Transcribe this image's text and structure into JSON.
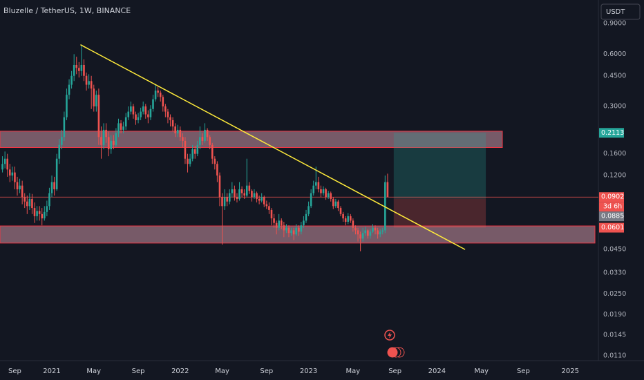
{
  "header": {
    "title": "Bluzelle / TetherUS, 1W, BINANCE",
    "currency": "USDT"
  },
  "chart_data": {
    "type": "candlestick",
    "log_scale": true,
    "up_color": "#26a69a",
    "down_color": "#ef5350",
    "open_first": 0.13,
    "close": [
      0.14,
      0.15,
      0.13,
      0.12,
      0.125,
      0.11,
      0.1,
      0.105,
      0.09,
      0.085,
      0.08,
      0.088,
      0.078,
      0.07,
      0.075,
      0.072,
      0.068,
      0.074,
      0.08,
      0.095,
      0.11,
      0.1,
      0.15,
      0.18,
      0.2,
      0.26,
      0.35,
      0.4,
      0.45,
      0.52,
      0.5,
      0.48,
      0.52,
      0.45,
      0.4,
      0.42,
      0.38,
      0.3,
      0.35,
      0.2,
      0.18,
      0.22,
      0.2,
      0.17,
      0.19,
      0.18,
      0.21,
      0.24,
      0.22,
      0.23,
      0.26,
      0.28,
      0.3,
      0.27,
      0.25,
      0.26,
      0.28,
      0.3,
      0.27,
      0.26,
      0.29,
      0.33,
      0.37,
      0.36,
      0.34,
      0.3,
      0.28,
      0.26,
      0.25,
      0.23,
      0.21,
      0.22,
      0.2,
      0.19,
      0.15,
      0.14,
      0.15,
      0.17,
      0.16,
      0.18,
      0.2,
      0.19,
      0.22,
      0.2,
      0.18,
      0.15,
      0.14,
      0.12,
      0.09,
      0.08,
      0.09,
      0.085,
      0.095,
      0.1,
      0.09,
      0.088,
      0.1,
      0.095,
      0.092,
      0.105,
      0.098,
      0.09,
      0.095,
      0.088,
      0.086,
      0.09,
      0.082,
      0.08,
      0.076,
      0.068,
      0.064,
      0.06,
      0.066,
      0.062,
      0.058,
      0.06,
      0.056,
      0.058,
      0.055,
      0.06,
      0.057,
      0.062,
      0.066,
      0.072,
      0.08,
      0.095,
      0.105,
      0.11,
      0.1,
      0.095,
      0.1,
      0.09,
      0.095,
      0.088,
      0.08,
      0.085,
      0.078,
      0.072,
      0.068,
      0.065,
      0.07,
      0.066,
      0.06,
      0.058,
      0.055,
      0.052,
      0.056,
      0.058,
      0.054,
      0.057,
      0.06,
      0.058,
      0.055,
      0.057,
      0.058,
      0.11,
      0.0902
    ],
    "high": [
      0.155,
      0.165,
      0.16,
      0.14,
      0.135,
      0.135,
      0.118,
      0.115,
      0.112,
      0.095,
      0.092,
      0.095,
      0.094,
      0.084,
      0.08,
      0.08,
      0.078,
      0.08,
      0.086,
      0.102,
      0.12,
      0.118,
      0.16,
      0.195,
      0.22,
      0.28,
      0.38,
      0.43,
      0.48,
      0.6,
      0.58,
      0.54,
      0.68,
      0.56,
      0.47,
      0.46,
      0.45,
      0.4,
      0.37,
      0.38,
      0.23,
      0.24,
      0.24,
      0.215,
      0.205,
      0.205,
      0.225,
      0.255,
      0.25,
      0.245,
      0.275,
      0.3,
      0.32,
      0.31,
      0.28,
      0.275,
      0.295,
      0.32,
      0.31,
      0.285,
      0.305,
      0.35,
      0.4,
      0.39,
      0.37,
      0.35,
      0.31,
      0.29,
      0.27,
      0.26,
      0.24,
      0.235,
      0.23,
      0.21,
      0.2,
      0.16,
      0.16,
      0.18,
      0.178,
      0.19,
      0.23,
      0.21,
      0.24,
      0.225,
      0.205,
      0.185,
      0.155,
      0.145,
      0.125,
      0.095,
      0.1,
      0.095,
      0.1,
      0.11,
      0.105,
      0.095,
      0.11,
      0.104,
      0.1,
      0.15,
      0.11,
      0.1,
      0.1,
      0.097,
      0.092,
      0.095,
      0.092,
      0.086,
      0.084,
      0.078,
      0.072,
      0.066,
      0.072,
      0.068,
      0.065,
      0.063,
      0.062,
      0.06,
      0.06,
      0.063,
      0.062,
      0.065,
      0.07,
      0.076,
      0.085,
      0.1,
      0.112,
      0.135,
      0.118,
      0.105,
      0.104,
      0.102,
      0.098,
      0.097,
      0.09,
      0.088,
      0.087,
      0.08,
      0.074,
      0.07,
      0.073,
      0.072,
      0.068,
      0.062,
      0.06,
      0.057,
      0.06,
      0.061,
      0.059,
      0.059,
      0.063,
      0.062,
      0.06,
      0.059,
      0.06,
      0.12,
      0.123
    ],
    "low": [
      0.125,
      0.132,
      0.118,
      0.11,
      0.112,
      0.1,
      0.092,
      0.095,
      0.082,
      0.078,
      0.072,
      0.076,
      0.072,
      0.064,
      0.066,
      0.066,
      0.062,
      0.066,
      0.07,
      0.076,
      0.09,
      0.092,
      0.098,
      0.14,
      0.17,
      0.19,
      0.25,
      0.33,
      0.38,
      0.42,
      0.46,
      0.44,
      0.45,
      0.42,
      0.37,
      0.38,
      0.29,
      0.28,
      0.28,
      0.18,
      0.15,
      0.17,
      0.185,
      0.155,
      0.16,
      0.17,
      0.175,
      0.2,
      0.21,
      0.21,
      0.22,
      0.25,
      0.27,
      0.255,
      0.235,
      0.24,
      0.25,
      0.27,
      0.255,
      0.24,
      0.25,
      0.28,
      0.32,
      0.34,
      0.32,
      0.28,
      0.26,
      0.24,
      0.23,
      0.215,
      0.2,
      0.2,
      0.19,
      0.175,
      0.14,
      0.125,
      0.135,
      0.145,
      0.15,
      0.155,
      0.17,
      0.18,
      0.185,
      0.19,
      0.17,
      0.14,
      0.13,
      0.11,
      0.08,
      0.048,
      0.076,
      0.08,
      0.082,
      0.09,
      0.086,
      0.084,
      0.086,
      0.09,
      0.088,
      0.09,
      0.094,
      0.085,
      0.088,
      0.084,
      0.082,
      0.084,
      0.079,
      0.077,
      0.072,
      0.062,
      0.06,
      0.055,
      0.058,
      0.059,
      0.053,
      0.056,
      0.053,
      0.054,
      0.051,
      0.054,
      0.054,
      0.055,
      0.06,
      0.064,
      0.07,
      0.078,
      0.092,
      0.1,
      0.096,
      0.09,
      0.092,
      0.087,
      0.088,
      0.085,
      0.077,
      0.078,
      0.075,
      0.07,
      0.065,
      0.062,
      0.063,
      0.064,
      0.057,
      0.055,
      0.05,
      0.044,
      0.05,
      0.054,
      0.052,
      0.052,
      0.056,
      0.055,
      0.052,
      0.053,
      0.055,
      0.056,
      0.09
    ],
    "xlim": [
      -1,
      240
    ],
    "ylim": [
      0.0105,
      1.23
    ],
    "xticks": [
      {
        "value": 5,
        "label": "Sep"
      },
      {
        "value": 20,
        "label": "2021"
      },
      {
        "value": 37,
        "label": "May"
      },
      {
        "value": 55,
        "label": "Sep"
      },
      {
        "value": 72,
        "label": "2022"
      },
      {
        "value": 89,
        "label": "May"
      },
      {
        "value": 107,
        "label": "Sep"
      },
      {
        "value": 124,
        "label": "2023"
      },
      {
        "value": 142,
        "label": "May"
      },
      {
        "value": 159,
        "label": "Sep"
      },
      {
        "value": 176,
        "label": "2024"
      },
      {
        "value": 194,
        "label": "May"
      },
      {
        "value": 211,
        "label": "Sep"
      },
      {
        "value": 230,
        "label": "2025"
      }
    ],
    "yticks": [
      {
        "value": 0.9,
        "label": "0.9000"
      },
      {
        "value": 0.6,
        "label": "0.6000"
      },
      {
        "value": 0.45,
        "label": "0.4500"
      },
      {
        "value": 0.3,
        "label": "0.3000"
      },
      {
        "value": 0.16,
        "label": "0.1600"
      },
      {
        "value": 0.12,
        "label": "0.1200"
      },
      {
        "value": 0.045,
        "label": "0.0450"
      },
      {
        "value": 0.033,
        "label": "0.0330"
      },
      {
        "value": 0.025,
        "label": "0.0250"
      },
      {
        "value": 0.019,
        "label": "0.0190"
      },
      {
        "value": 0.0145,
        "label": "0.0145"
      },
      {
        "value": 0.011,
        "label": "0.0110"
      }
    ],
    "zones": [
      {
        "top": 0.216,
        "bottom": 0.174,
        "x0": -1,
        "x1": 202.5
      },
      {
        "top": 0.0615,
        "bottom": 0.049,
        "x0": -1,
        "x1": 240
      }
    ],
    "trendline": {
      "x": [
        31.6,
        187.4
      ],
      "y": [
        0.68,
        0.045
      ]
    },
    "position": {
      "x0": 158.5,
      "x1": 195.8,
      "target": 0.2113,
      "entry": 0.0885,
      "stop": 0.0601
    },
    "last_price": 0.0902,
    "countdown": "3d 6h"
  }
}
